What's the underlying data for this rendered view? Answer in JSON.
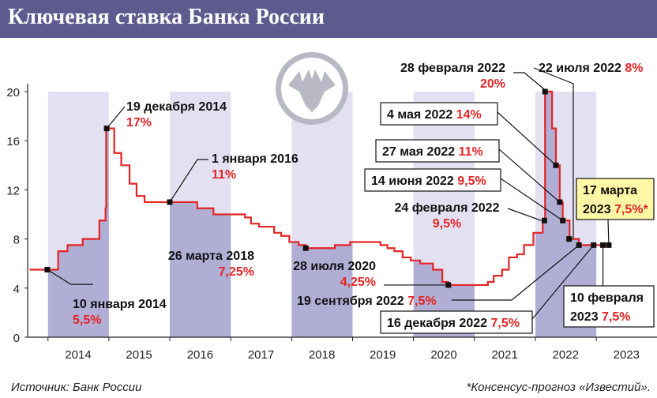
{
  "header": {
    "title": "Ключевая ставка Банка России"
  },
  "footer": {
    "source": "Источник: Банк России",
    "note": "*Консенсус-прогноз «Известий»."
  },
  "colors": {
    "header": "#5d5a8e",
    "band": "#e3e1f1",
    "fill": "#b1aed6",
    "line": "#e32526",
    "accent": "#e32526",
    "forecast_box": "#fdf7a6"
  },
  "icons": {
    "logo": "double-headed-eagle-icon"
  },
  "chart_data": {
    "type": "line",
    "title": "Ключевая ставка Банка России",
    "xlabel": "",
    "ylabel": "",
    "x_ticks": [
      "2014",
      "2015",
      "2016",
      "2017",
      "2018",
      "2019",
      "2020",
      "2021",
      "2022",
      "2023"
    ],
    "y_ticks": [
      0,
      4,
      8,
      12,
      16,
      20
    ],
    "ylim": [
      0,
      20
    ],
    "grid": false,
    "series": [
      {
        "name": "",
        "points": [
          [
            "2013-09-13",
            5.5
          ],
          [
            "2014-03-03",
            7.0
          ],
          [
            "2014-04-28",
            7.5
          ],
          [
            "2014-07-28",
            8.0
          ],
          [
            "2014-11-05",
            9.5
          ],
          [
            "2014-12-12",
            10.5
          ],
          [
            "2014-12-16",
            17.0
          ],
          [
            "2015-02-02",
            15.0
          ],
          [
            "2015-03-16",
            14.0
          ],
          [
            "2015-05-05",
            12.5
          ],
          [
            "2015-06-16",
            11.5
          ],
          [
            "2015-08-03",
            11.0
          ],
          [
            "2016-06-14",
            10.5
          ],
          [
            "2016-09-19",
            10.0
          ],
          [
            "2017-03-27",
            9.75
          ],
          [
            "2017-05-02",
            9.25
          ],
          [
            "2017-06-19",
            9.0
          ],
          [
            "2017-09-18",
            8.5
          ],
          [
            "2017-10-30",
            8.25
          ],
          [
            "2017-12-18",
            7.75
          ],
          [
            "2018-02-12",
            7.5
          ],
          [
            "2018-03-26",
            7.25
          ],
          [
            "2018-09-17",
            7.5
          ],
          [
            "2018-12-17",
            7.75
          ],
          [
            "2019-06-17",
            7.5
          ],
          [
            "2019-07-29",
            7.25
          ],
          [
            "2019-09-09",
            7.0
          ],
          [
            "2019-10-28",
            6.5
          ],
          [
            "2019-12-16",
            6.25
          ],
          [
            "2020-02-10",
            6.0
          ],
          [
            "2020-04-27",
            5.5
          ],
          [
            "2020-06-22",
            4.5
          ],
          [
            "2020-07-27",
            4.25
          ],
          [
            "2021-03-22",
            4.5
          ],
          [
            "2021-04-26",
            5.0
          ],
          [
            "2021-06-15",
            5.5
          ],
          [
            "2021-07-26",
            6.5
          ],
          [
            "2021-09-13",
            6.75
          ],
          [
            "2021-10-25",
            7.5
          ],
          [
            "2021-12-20",
            8.5
          ],
          [
            "2022-02-14",
            9.5
          ],
          [
            "2022-02-28",
            20.0
          ],
          [
            "2022-04-11",
            17.0
          ],
          [
            "2022-05-04",
            14.0
          ],
          [
            "2022-05-27",
            11.0
          ],
          [
            "2022-06-14",
            9.5
          ],
          [
            "2022-07-25",
            8.0
          ],
          [
            "2022-09-19",
            7.5
          ],
          [
            "2023-03-17",
            7.5
          ]
        ]
      }
    ],
    "forecast": {
      "from": "2023-02-10",
      "to": "2023-03-17",
      "value": 7.5
    },
    "annotations": [
      {
        "date": "10 января 2014",
        "value": "5,5%"
      },
      {
        "date": "19 декабря 2014",
        "value": "17%"
      },
      {
        "date": "1 января 2016",
        "value": "11%"
      },
      {
        "date": "26 марта 2018",
        "value": "7,25%"
      },
      {
        "date": "28 июля 2020",
        "value": "4,25%"
      },
      {
        "date": "28 февраля 2022",
        "value": "20%"
      },
      {
        "date": "22 июля 2022",
        "value": "8%"
      },
      {
        "date": "4 мая 2022",
        "value": "14%"
      },
      {
        "date": "27 мая 2022",
        "value": "11%"
      },
      {
        "date": "14 июня 2022",
        "value": "9,5%"
      },
      {
        "date": "24 февраля 2022",
        "value": "9,5%"
      },
      {
        "date": "17 марта",
        "date2": "2023",
        "value": "7,5%*"
      },
      {
        "date": "19 сентября 2022",
        "value": "7,5%"
      },
      {
        "date": "16 декабря 2022",
        "value": "7,5%"
      },
      {
        "date": "10 февраля",
        "date2": "2023",
        "value": "7,5%"
      }
    ]
  }
}
